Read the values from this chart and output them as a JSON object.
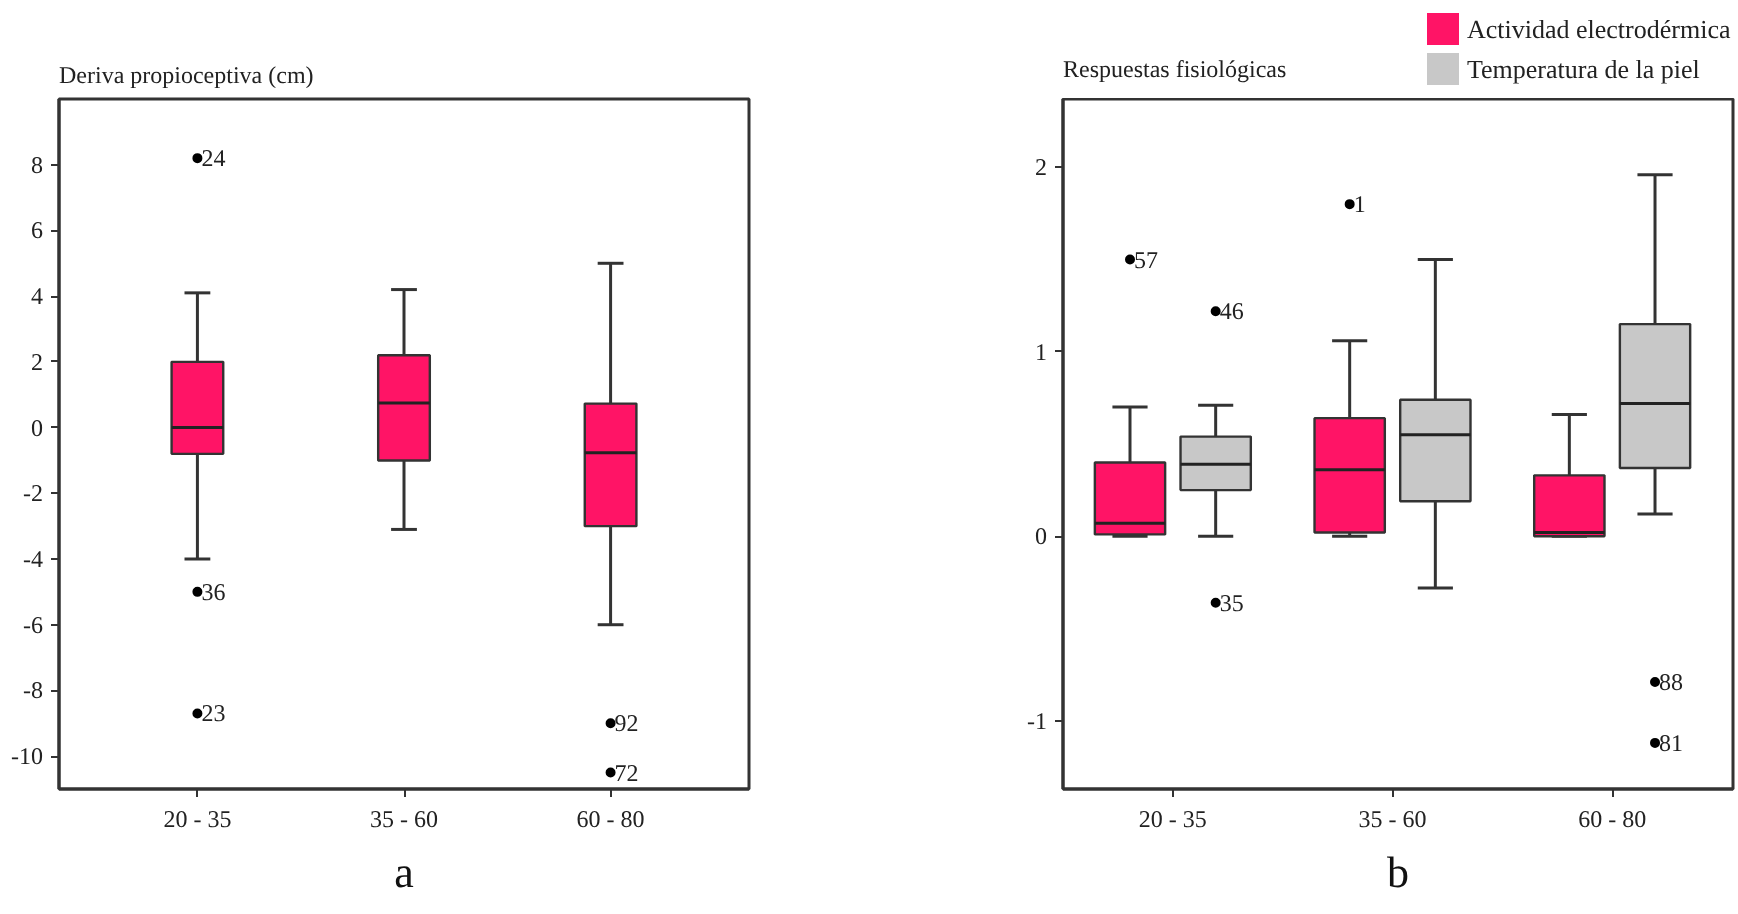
{
  "chart_data": [
    {
      "type": "box",
      "title": "Deriva propioceptiva (cm)",
      "categories": [
        "20 - 35",
        "35 - 60",
        "60 - 80"
      ],
      "series": [
        {
          "color": "#ff1466",
          "boxes": [
            {
              "low": -4.0,
              "q1": -0.8,
              "median": 0.0,
              "q3": 2.0,
              "high": 4.1,
              "outliers": [
                8.2,
                -5.0,
                -8.7
              ]
            },
            {
              "low": -3.1,
              "q1": -1.0,
              "median": 0.75,
              "q3": 2.2,
              "high": 4.2
            },
            {
              "low": -6.0,
              "q1": -3.0,
              "median": -0.77,
              "q3": 0.73,
              "high": 5.0,
              "outliers": [
                -9.0,
                -10.5
              ]
            }
          ]
        }
      ],
      "ylim": [
        -11,
        10
      ],
      "yticks": [
        -10,
        -8,
        -6,
        -4,
        -2,
        0,
        2,
        4,
        6,
        8
      ],
      "annotations": [
        "24",
        "36",
        "23",
        "92",
        "72",
        "a"
      ]
    },
    {
      "type": "box",
      "title": "Respuestas fisiológicas",
      "categories": [
        "20 - 35",
        "35 - 60",
        "60 - 80"
      ],
      "series": [
        {
          "name": "Actividad electrodérmica",
          "color": "#ff1466",
          "boxes": [
            {
              "low": 0.0,
              "q1": 0.01,
              "median": 0.07,
              "q3": 0.4,
              "high": 0.7,
              "outliers": [
                1.5
              ]
            },
            {
              "low": 0.0,
              "q1": 0.02,
              "median": 0.36,
              "q3": 0.64,
              "high": 1.06,
              "outliers": [
                1.8
              ]
            },
            {
              "low": 0.0,
              "q1": 0.0,
              "median": 0.02,
              "q3": 0.33,
              "high": 0.66
            }
          ]
        },
        {
          "name": "Temperatura de la piel",
          "color": "#c8c8c8",
          "boxes": [
            {
              "low": 0.0,
              "q1": 0.25,
              "median": 0.39,
              "q3": 0.54,
              "high": 0.71,
              "outliers": [
                1.22,
                -0.36
              ]
            },
            {
              "low": -0.28,
              "q1": 0.19,
              "median": 0.55,
              "q3": 0.74,
              "high": 1.5
            },
            {
              "low": 0.12,
              "q1": 0.37,
              "median": 0.72,
              "q3": 1.15,
              "high": 1.96,
              "outliers": [
                -0.79,
                -1.12
              ]
            }
          ]
        }
      ],
      "ylim": [
        -1.37,
        2.37
      ],
      "yticks": [
        -1,
        0,
        1,
        2
      ],
      "legend": "top right",
      "annotations": [
        "57",
        "1",
        "46",
        "35",
        "88",
        "81",
        "b"
      ]
    }
  ]
}
